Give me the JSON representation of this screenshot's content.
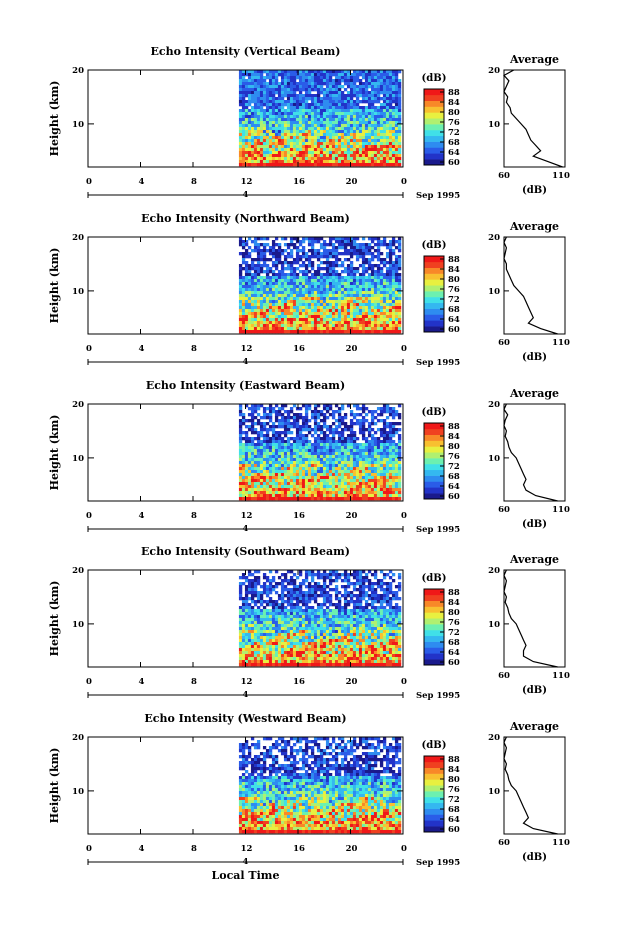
{
  "figure": {
    "x_axis_label": "Local Time",
    "date_label": "Sep 1995",
    "day_label": "4",
    "time_ticks": [
      "0",
      "4",
      "8",
      "12",
      "16",
      "20",
      "0"
    ],
    "height_ticks": [
      "20",
      "10"
    ],
    "y_axis_label": "Height (km)",
    "colorbar": {
      "unit": "(dB)",
      "tick_labels": [
        "88",
        "84",
        "80",
        "76",
        "72",
        "68",
        "64",
        "60"
      ],
      "colors": [
        "#1a1a8c",
        "#2233c8",
        "#2a5ce8",
        "#2e8cf0",
        "#34b8f0",
        "#40e0e8",
        "#6cf0b0",
        "#b0f070",
        "#e8f040",
        "#f8c030",
        "#f88828",
        "#f04020",
        "#f01818"
      ]
    },
    "profile": {
      "title": "Average",
      "x_ticks": [
        "60",
        "110"
      ],
      "y_ticks": [
        "20",
        "10"
      ],
      "x_label": "(dB)"
    }
  },
  "chart_data": [
    {
      "type": "heatmap",
      "title": "Echo Intensity (Vertical Beam)",
      "xlabel": "",
      "ylabel": "Height (km)",
      "x_range_hours": [
        0,
        24
      ],
      "data_start_hour": 11.5,
      "ylim_km": [
        2,
        20
      ],
      "clim_db": [
        60,
        88
      ],
      "profile": {
        "title": "Average",
        "xlim": [
          60,
          110
        ],
        "height_km": [
          2,
          3,
          4,
          5,
          6,
          7,
          8,
          9,
          10,
          11,
          12,
          13,
          14,
          15,
          16,
          17,
          18,
          19,
          20
        ],
        "avg_db": [
          108,
          96,
          84,
          90,
          86,
          82,
          80,
          78,
          74,
          70,
          66,
          65,
          62,
          63,
          60,
          62,
          64,
          60,
          68
        ]
      }
    },
    {
      "type": "heatmap",
      "title": "Echo Intensity (Northward Beam)",
      "xlabel": "",
      "ylabel": "Height (km)",
      "x_range_hours": [
        0,
        24
      ],
      "data_start_hour": 11.5,
      "ylim_km": [
        2,
        20
      ],
      "clim_db": [
        60,
        88
      ],
      "profile": {
        "title": "Average",
        "xlim": [
          60,
          110
        ],
        "height_km": [
          2,
          3,
          4,
          5,
          6,
          7,
          8,
          9,
          10,
          11,
          12,
          13,
          14,
          15,
          16,
          17,
          18,
          19,
          20
        ],
        "avg_db": [
          104,
          90,
          80,
          84,
          82,
          80,
          78,
          76,
          72,
          68,
          66,
          64,
          62,
          62,
          60,
          61,
          62,
          60,
          62
        ]
      }
    },
    {
      "type": "heatmap",
      "title": "Echo Intensity (Eastward Beam)",
      "xlabel": "",
      "ylabel": "Height (km)",
      "x_range_hours": [
        0,
        24
      ],
      "data_start_hour": 11.5,
      "ylim_km": [
        2,
        20
      ],
      "clim_db": [
        60,
        88
      ],
      "profile": {
        "title": "Average",
        "xlim": [
          60,
          110
        ],
        "height_km": [
          2,
          3,
          4,
          5,
          6,
          7,
          8,
          9,
          10,
          11,
          12,
          13,
          14,
          15,
          16,
          17,
          18,
          19,
          20
        ],
        "avg_db": [
          104,
          86,
          78,
          76,
          78,
          76,
          74,
          72,
          70,
          66,
          64,
          63,
          61,
          62,
          60,
          61,
          63,
          60,
          62
        ]
      }
    },
    {
      "type": "heatmap",
      "title": "Echo Intensity (Southward Beam)",
      "xlabel": "",
      "ylabel": "Height (km)",
      "x_range_hours": [
        0,
        24
      ],
      "data_start_hour": 11.5,
      "ylim_km": [
        2,
        20
      ],
      "clim_db": [
        60,
        88
      ],
      "profile": {
        "title": "Average",
        "xlim": [
          60,
          110
        ],
        "height_km": [
          2,
          3,
          4,
          5,
          6,
          7,
          8,
          9,
          10,
          11,
          12,
          13,
          14,
          15,
          16,
          17,
          18,
          19,
          20
        ],
        "avg_db": [
          104,
          84,
          76,
          76,
          78,
          76,
          74,
          72,
          70,
          66,
          64,
          63,
          61,
          62,
          60,
          61,
          62,
          60,
          62
        ]
      }
    },
    {
      "type": "heatmap",
      "title": "Echo Intensity (Westward Beam)",
      "xlabel": "Local Time",
      "ylabel": "Height (km)",
      "x_range_hours": [
        0,
        24
      ],
      "data_start_hour": 11.5,
      "ylim_km": [
        2,
        20
      ],
      "clim_db": [
        60,
        88
      ],
      "profile": {
        "title": "Average",
        "xlim": [
          60,
          110
        ],
        "height_km": [
          2,
          3,
          4,
          5,
          6,
          7,
          8,
          9,
          10,
          11,
          12,
          13,
          14,
          15,
          16,
          17,
          18,
          19,
          20
        ],
        "avg_db": [
          104,
          84,
          76,
          80,
          78,
          76,
          74,
          72,
          70,
          66,
          64,
          63,
          61,
          62,
          60,
          61,
          62,
          60,
          62
        ]
      }
    }
  ]
}
